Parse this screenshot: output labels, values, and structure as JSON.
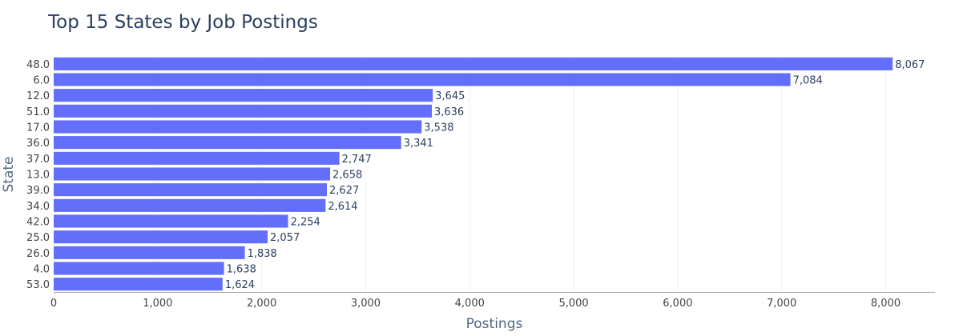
{
  "chart_data": {
    "type": "bar",
    "orientation": "horizontal",
    "title": "Top 15 States by Job Postings",
    "xlabel": "Postings",
    "ylabel": "State",
    "xlim": [
      0,
      8500
    ],
    "xticks": [
      0,
      1000,
      2000,
      3000,
      4000,
      5000,
      6000,
      7000,
      8000
    ],
    "xtick_labels": [
      "0",
      "1,000",
      "2,000",
      "3,000",
      "4,000",
      "5,000",
      "6,000",
      "7,000",
      "8,000"
    ],
    "categories": [
      "48.0",
      "6.0",
      "12.0",
      "51.0",
      "17.0",
      "36.0",
      "37.0",
      "13.0",
      "39.0",
      "34.0",
      "42.0",
      "25.0",
      "26.0",
      "4.0",
      "53.0"
    ],
    "values": [
      8067,
      7084,
      3645,
      3636,
      3538,
      3341,
      2747,
      2658,
      2627,
      2614,
      2254,
      2057,
      1838,
      1638,
      1624
    ],
    "value_labels": [
      "8,067",
      "7,084",
      "3,645",
      "3,636",
      "3,538",
      "3,341",
      "2,747",
      "2,658",
      "2,627",
      "2,614",
      "2,254",
      "2,057",
      "1,838",
      "1,638",
      "1,624"
    ],
    "bar_color": "#636efa",
    "grid": true,
    "legend": "none"
  }
}
